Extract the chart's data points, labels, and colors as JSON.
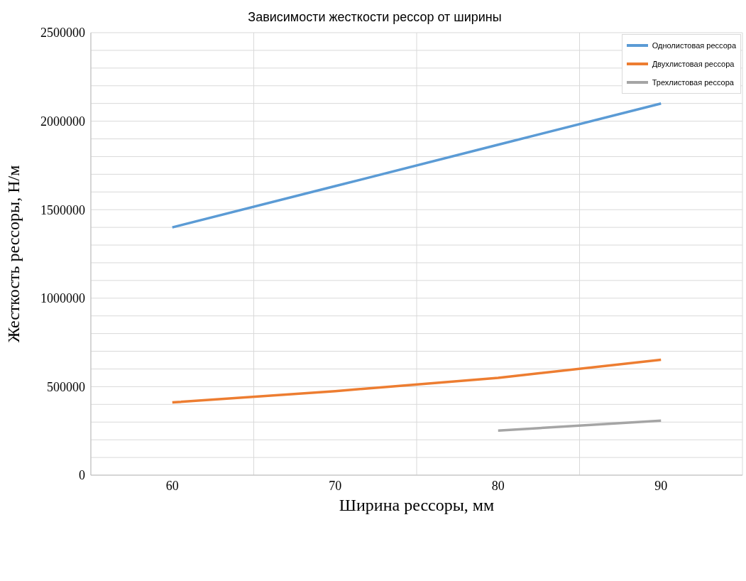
{
  "chart_data": {
    "type": "line",
    "title": "Зависимости жесткости рессор от ширины",
    "xlabel": "Ширина рессоры, мм",
    "ylabel": "Жесткость рессоры, Н/м",
    "x": [
      60,
      70,
      80,
      90
    ],
    "series": [
      {
        "name": "Однолистовая рессора",
        "color": "#5b9bd5",
        "values": [
          1400000,
          1633000,
          1867000,
          2100000
        ]
      },
      {
        "name": "Двухлистовая рессора",
        "color": "#ed7d31",
        "values": [
          411000,
          475000,
          550000,
          652000
        ]
      },
      {
        "name": "Трехлистовая рессора",
        "color": "#a5a5a5",
        "values": [
          null,
          null,
          252000,
          308000
        ]
      }
    ],
    "xlim": [
      55,
      95
    ],
    "xticks": [
      {
        "value": 55,
        "label": null
      },
      60,
      {
        "value": 65,
        "label": null
      },
      70,
      {
        "value": 75,
        "label": null
      },
      80,
      {
        "value": 85,
        "label": null
      },
      90,
      {
        "value": 95,
        "label": null
      }
    ],
    "ylim": [
      0,
      2500000
    ],
    "yticks": [
      0,
      {
        "value": 100000,
        "label": null
      },
      {
        "value": 200000,
        "label": null
      },
      {
        "value": 300000,
        "label": null
      },
      {
        "value": 400000,
        "label": null
      },
      500000,
      {
        "value": 600000,
        "label": null
      },
      {
        "value": 700000,
        "label": null
      },
      {
        "value": 800000,
        "label": null
      },
      {
        "value": 900000,
        "label": null
      },
      1000000,
      {
        "value": 1100000,
        "label": null
      },
      {
        "value": 1200000,
        "label": null
      },
      {
        "value": 1300000,
        "label": null
      },
      {
        "value": 1400000,
        "label": null
      },
      1500000,
      {
        "value": 1600000,
        "label": null
      },
      {
        "value": 1700000,
        "label": null
      },
      {
        "value": 1800000,
        "label": null
      },
      {
        "value": 1900000,
        "label": null
      },
      2000000,
      {
        "value": 2100000,
        "label": null
      },
      {
        "value": 2200000,
        "label": null
      },
      {
        "value": 2300000,
        "label": null
      },
      {
        "value": 2400000,
        "label": null
      },
      2500000
    ],
    "grid": true,
    "legend": "top right",
    "marker": "none",
    "line_style": "solid"
  }
}
